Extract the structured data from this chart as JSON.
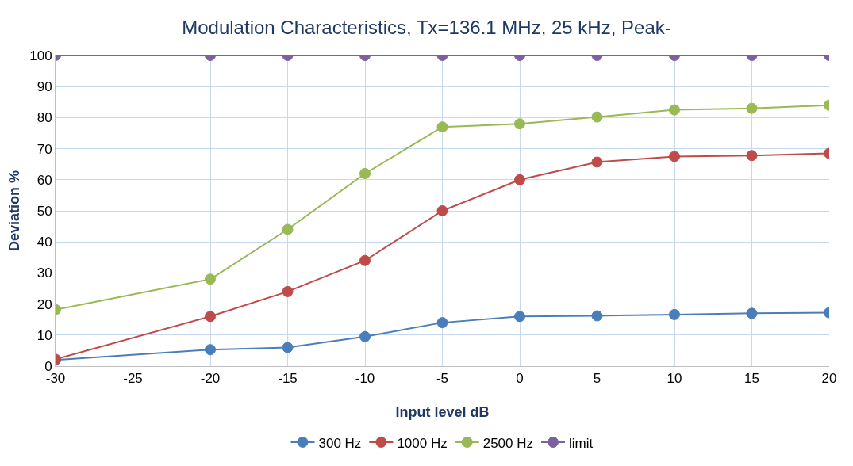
{
  "chart_data": {
    "type": "line",
    "title": "Modulation Characteristics, Tx=136.1 MHz, 25 kHz, Peak-",
    "xlabel": "Input level dB",
    "ylabel": "Deviation %",
    "x": [
      -30,
      -20,
      -15,
      -10,
      -5,
      0,
      5,
      10,
      15,
      20
    ],
    "series": [
      {
        "name": "300 Hz",
        "color": "#4a7ebb",
        "values": [
          2,
          5.3,
          6,
          9.5,
          14,
          16,
          16.2,
          16.6,
          17,
          17.2
        ]
      },
      {
        "name": "1000 Hz",
        "color": "#be4b48",
        "values": [
          2.2,
          16,
          24,
          34,
          50,
          60,
          65.7,
          67.5,
          67.8,
          68.5
        ]
      },
      {
        "name": "2500 Hz",
        "color": "#98b954",
        "values": [
          18.2,
          28,
          44,
          62,
          77,
          78,
          80.2,
          82.5,
          83,
          84
        ]
      },
      {
        "name": "limit",
        "color": "#7d60a0",
        "values": [
          100,
          100,
          100,
          100,
          100,
          100,
          100,
          100,
          100,
          100
        ]
      }
    ],
    "xlim": [
      -30,
      20
    ],
    "xticks": [
      -30,
      -25,
      -20,
      -15,
      -10,
      -5,
      0,
      5,
      10,
      15,
      20
    ],
    "ylim": [
      0,
      100
    ],
    "yticks": [
      0,
      10,
      20,
      30,
      40,
      50,
      60,
      70,
      80,
      90,
      100
    ],
    "grid": true,
    "legend": "bottom",
    "marker": "circle",
    "line_style": "solid"
  }
}
